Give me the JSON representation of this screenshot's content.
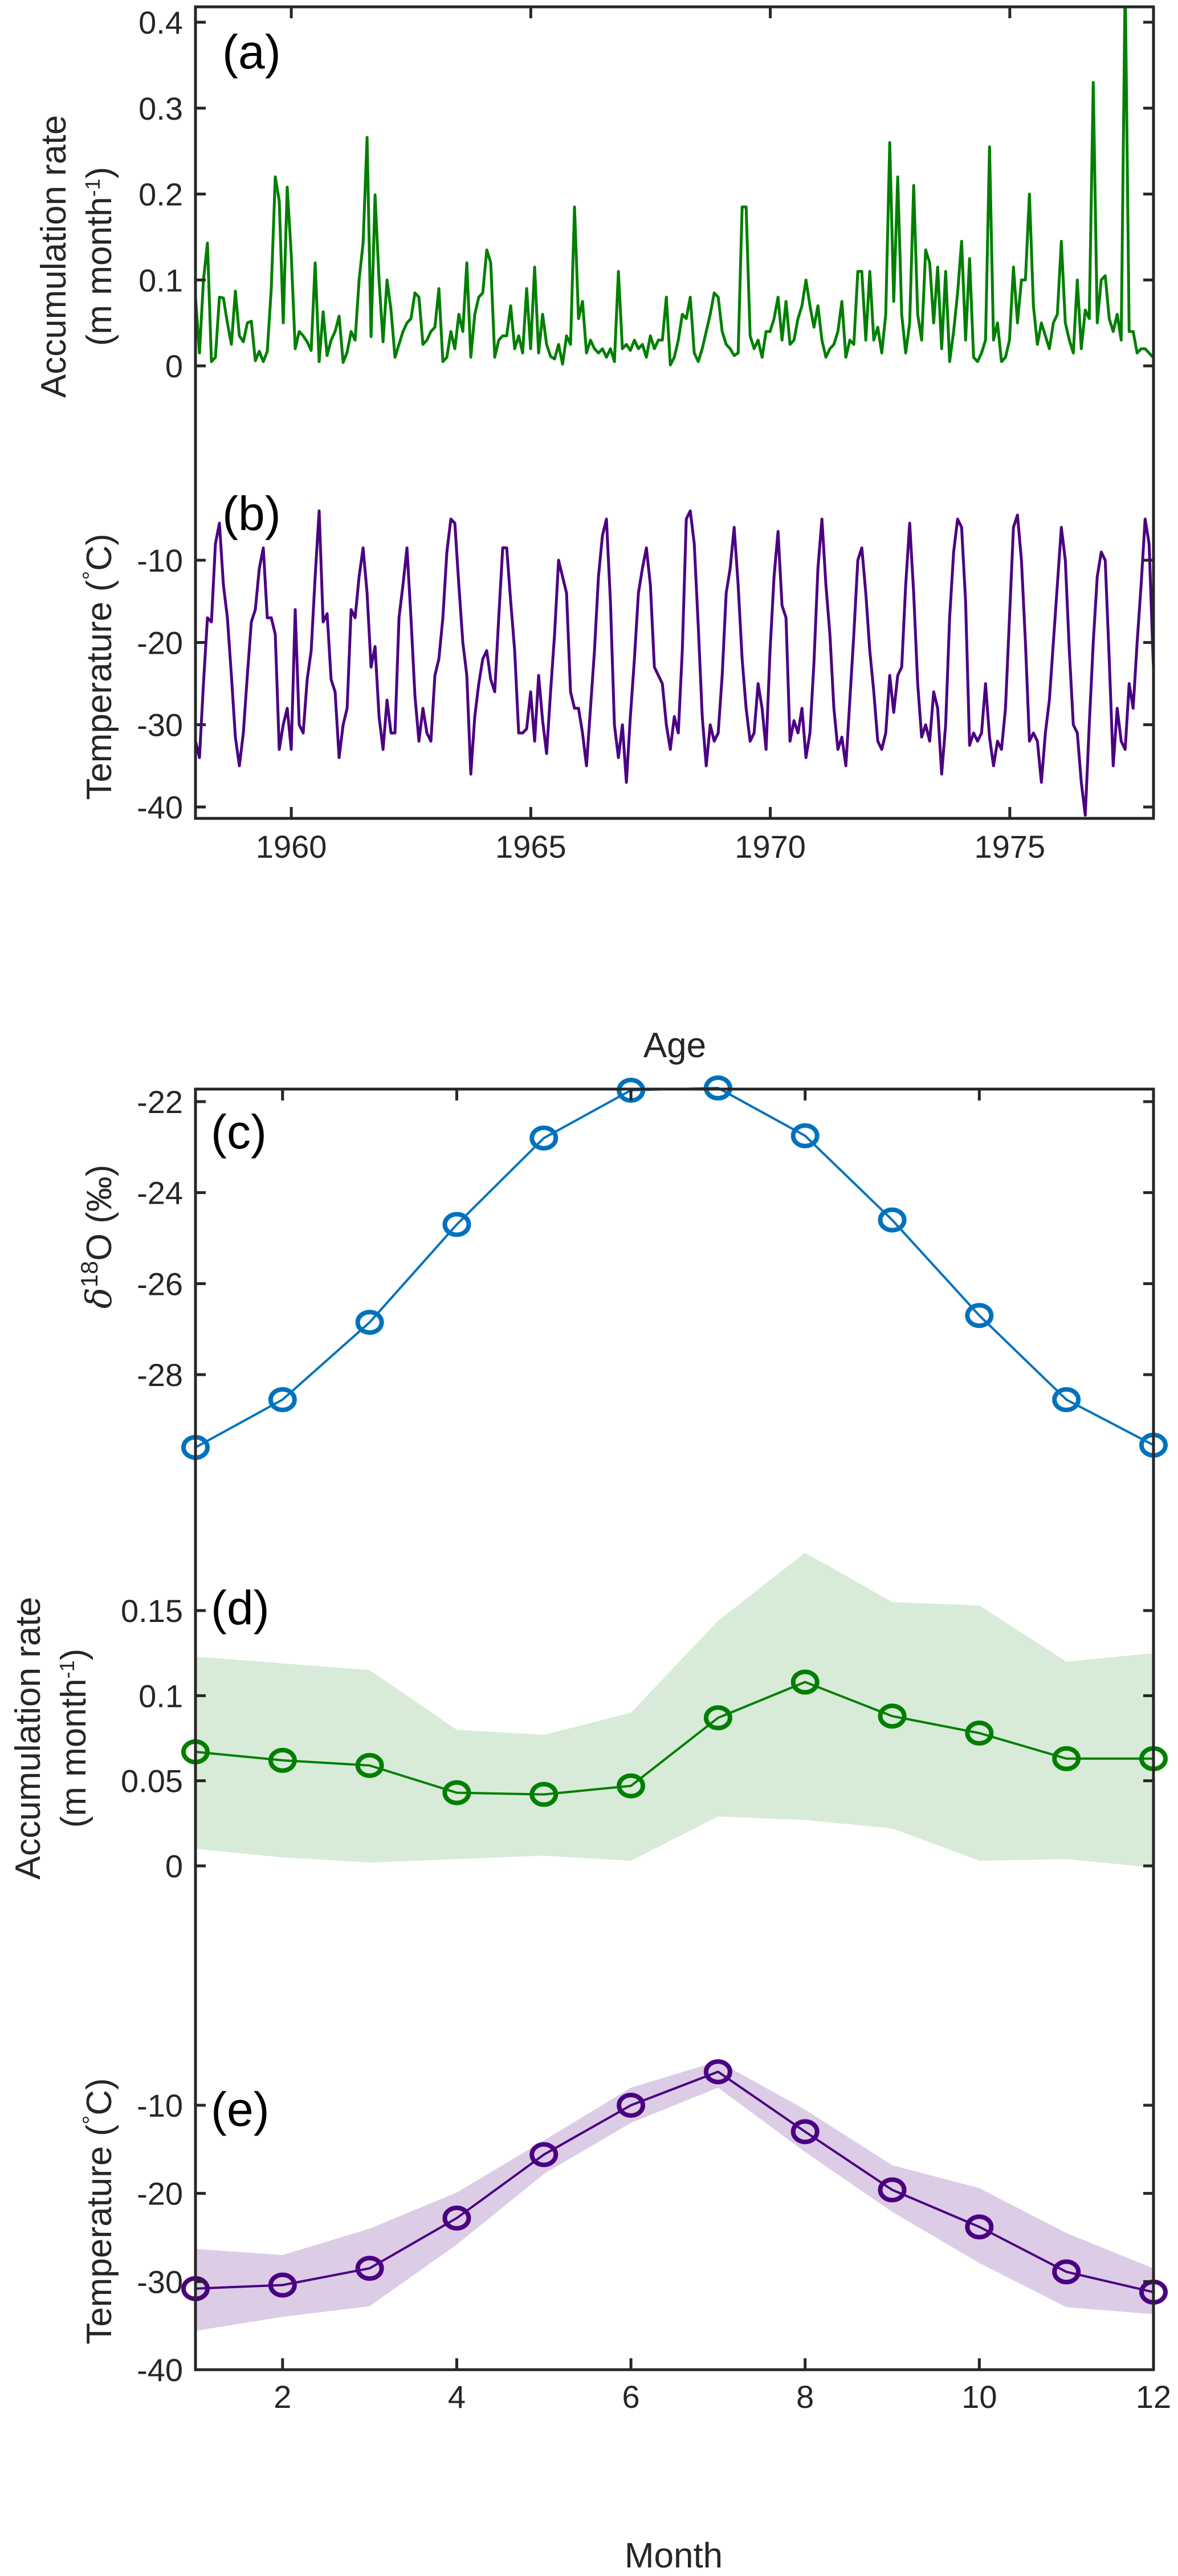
{
  "chart_data": [
    {
      "id": "a",
      "type": "line",
      "panel_label": "(a)",
      "xlabel": "",
      "ylabel": "Accumulation rate",
      "ylabel_line2": "(m month",
      "ylabel_sup": "-1",
      "ylabel_close": ")",
      "xlim": [
        1958,
        1978
      ],
      "ylim": [
        0,
        0.42
      ],
      "yticks": [
        0,
        0.1,
        0.2,
        0.3,
        0.4
      ],
      "ytick_labels": [
        "0",
        "0.1",
        "0.2",
        "0.3",
        "0.4"
      ],
      "xticks": [
        1960,
        1965,
        1970,
        1975
      ],
      "xtick_labels": [],
      "series": [
        {
          "name": "Accumulation rate (monthly)",
          "color": "#007F00",
          "x_start": 1958.0,
          "x_step": 0.0833,
          "values": [
            0.08,
            0.015,
            0.1,
            0.143,
            0.005,
            0.01,
            0.08,
            0.079,
            0.05,
            0.025,
            0.087,
            0.035,
            0.028,
            0.05,
            0.052,
            0.006,
            0.017,
            0.005,
            0.017,
            0.09,
            0.22,
            0.192,
            0.05,
            0.208,
            0.13,
            0.02,
            0.04,
            0.035,
            0.028,
            0.018,
            0.12,
            0.005,
            0.063,
            0.012,
            0.03,
            0.04,
            0.058,
            0.004,
            0.016,
            0.04,
            0.03,
            0.1,
            0.143,
            0.266,
            0.034,
            0.199,
            0.1,
            0.028,
            0.1,
            0.065,
            0.01,
            0.025,
            0.04,
            0.05,
            0.055,
            0.085,
            0.08,
            0.025,
            0.03,
            0.04,
            0.045,
            0.09,
            0.005,
            0.01,
            0.04,
            0.02,
            0.06,
            0.04,
            0.12,
            0.01,
            0.06,
            0.08,
            0.085,
            0.135,
            0.12,
            0.01,
            0.03,
            0.035,
            0.035,
            0.07,
            0.02,
            0.035,
            0.015,
            0.09,
            0.02,
            0.115,
            0.015,
            0.06,
            0.025,
            0.011,
            0.008,
            0.025,
            0.002,
            0.035,
            0.025,
            0.185,
            0.055,
            0.075,
            0.015,
            0.03,
            0.02,
            0.015,
            0.02,
            0.01,
            0.02,
            0.005,
            0.11,
            0.02,
            0.025,
            0.018,
            0.03,
            0.02,
            0.025,
            0.01,
            0.035,
            0.02,
            0.03,
            0.03,
            0.08,
            0.001,
            0.01,
            0.03,
            0.06,
            0.055,
            0.08,
            0.015,
            0.005,
            0.02,
            0.04,
            0.06,
            0.085,
            0.08,
            0.04,
            0.025,
            0.02,
            0.012,
            0.015,
            0.185,
            0.185,
            0.035,
            0.02,
            0.03,
            0.01,
            0.04,
            0.04,
            0.055,
            0.08,
            0.03,
            0.075,
            0.025,
            0.03,
            0.055,
            0.07,
            0.1,
            0.07,
            0.045,
            0.07,
            0.03,
            0.01,
            0.02,
            0.025,
            0.04,
            0.075,
            0.01,
            0.03,
            0.025,
            0.11,
            0.11,
            0.03,
            0.11,
            0.03,
            0.045,
            0.015,
            0.06,
            0.26,
            0.075,
            0.22,
            0.06,
            0.015,
            0.05,
            0.21,
            0.06,
            0.03,
            0.135,
            0.12,
            0.05,
            0.115,
            0.02,
            0.11,
            0.005,
            0.04,
            0.085,
            0.145,
            0.03,
            0.125,
            0.01,
            0.005,
            0.015,
            0.03,
            0.255,
            0.03,
            0.05,
            0.005,
            0.01,
            0.03,
            0.115,
            0.05,
            0.1,
            0.1,
            0.2,
            0.07,
            0.025,
            0.05,
            0.035,
            0.02,
            0.05,
            0.06,
            0.145,
            0.05,
            0.03,
            0.015,
            0.1,
            0.02,
            0.065,
            0.055,
            0.33,
            0.05,
            0.1,
            0.105,
            0.055,
            0.04,
            0.06,
            0.03,
            0.45,
            0.04,
            0.04,
            0.015,
            0.02,
            0.02,
            0.015,
            0.01,
            0.03,
            0.145,
            0.04,
            0.095,
            0.09,
            0.035,
            0.015,
            0.05
          ]
        }
      ]
    },
    {
      "id": "b",
      "type": "line",
      "panel_label": "(b)",
      "xlabel": "Age",
      "ylabel": "Temperature (",
      "ylabel_deg": "°",
      "ylabel_unit": "C)",
      "xlim": [
        1958,
        1978
      ],
      "ylim": [
        -41,
        -3
      ],
      "yticks": [
        -40,
        -30,
        -20,
        -10
      ],
      "ytick_labels": [
        "-40",
        "-30",
        "-20",
        "-10"
      ],
      "xticks": [
        1960,
        1965,
        1970,
        1975
      ],
      "xtick_labels": [
        "1960",
        "1965",
        "1970",
        "1975"
      ],
      "series": [
        {
          "name": "Temperature (monthly)",
          "color": "#4B0082",
          "x_start": 1958.0,
          "x_step": 0.0833,
          "values": [
            -32,
            -34,
            -25,
            -17,
            -17.5,
            -8,
            -5.5,
            -13,
            -17,
            -24,
            -31.5,
            -35,
            -31,
            -24,
            -17.5,
            -16,
            -11,
            -8.5,
            -17,
            -17,
            -19,
            -33,
            -30,
            -28,
            -33,
            -16,
            -30,
            -31,
            -24.5,
            -21,
            -12,
            -4,
            -17.5,
            -16.5,
            -24.5,
            -26,
            -34,
            -30,
            -28,
            -16,
            -17,
            -12,
            -8.5,
            -14,
            -23,
            -20.5,
            -29,
            -33,
            -27,
            -31,
            -31,
            -17,
            -13,
            -8.5,
            -17,
            -26.5,
            -32,
            -28,
            -31,
            -32,
            -24,
            -22,
            -17,
            -9,
            -5,
            -5.5,
            -13,
            -20,
            -24,
            -36,
            -29,
            -25,
            -22,
            -21,
            -24.5,
            -26,
            -17,
            -8.5,
            -8.5,
            -15,
            -21,
            -31,
            -31,
            -30.5,
            -26,
            -32,
            -24,
            -29.5,
            -33.5,
            -26,
            -19,
            -10,
            -12,
            -14,
            -26,
            -28,
            -28,
            -31,
            -35,
            -28,
            -21,
            -12,
            -7,
            -5,
            -15,
            -30,
            -34,
            -30,
            -37,
            -29,
            -22,
            -14,
            -11,
            -8.5,
            -13,
            -23,
            -24,
            -25,
            -30,
            -33,
            -29,
            -31,
            -21,
            -5,
            -4,
            -8,
            -18,
            -29,
            -35,
            -30,
            -32,
            -31,
            -24,
            -14,
            -11,
            -6,
            -13,
            -22,
            -28,
            -32,
            -31,
            -25,
            -28,
            -33,
            -21,
            -12,
            -6.5,
            -15.5,
            -17,
            -32,
            -29.5,
            -31,
            -28,
            -34,
            -31,
            -22.5,
            -11,
            -5,
            -13,
            -19,
            -28,
            -33,
            -31.5,
            -35,
            -27,
            -19,
            -10,
            -8.5,
            -14,
            -21,
            -26,
            -32,
            -33,
            -31,
            -24,
            -28.5,
            -24,
            -23,
            -13,
            -5.5,
            -14,
            -25,
            -31.5,
            -30,
            -32,
            -26,
            -28,
            -36,
            -30,
            -17,
            -9,
            -5,
            -6,
            -15,
            -32.5,
            -31,
            -32,
            -31,
            -25,
            -31.5,
            -35,
            -32,
            -33,
            -28,
            -17,
            -6,
            -4.5,
            -10,
            -20,
            -32,
            -31,
            -32,
            -37,
            -31,
            -27,
            -20,
            -13,
            -6,
            -10,
            -21,
            -30,
            -31,
            -37,
            -41,
            -30,
            -20,
            -12,
            -9,
            -10,
            -22,
            -35,
            -28,
            -32,
            -33,
            -25,
            -28,
            -20,
            -13,
            -5,
            -8,
            -22,
            -33,
            -42,
            -30,
            -26,
            -28,
            -20,
            -14,
            -5,
            -8,
            -22,
            -21,
            -22,
            -34,
            -36,
            -31,
            -24,
            -12,
            -5,
            -12,
            -19,
            -21,
            -31,
            -30,
            -33,
            -34,
            -31,
            -18,
            -12,
            -6,
            -14,
            -20,
            -22,
            -32,
            -29
          ]
        }
      ]
    },
    {
      "id": "c",
      "type": "line",
      "panel_label": "(c)",
      "ylabel_prefix": "δ",
      "ylabel_sup": "18",
      "ylabel_main": "O (‰)",
      "xlim": [
        1,
        12
      ],
      "ylim": [
        -29.8,
        -21.7
      ],
      "yticks": [
        -28,
        -26,
        -24,
        -22
      ],
      "ytick_labels": [
        "-28",
        "-26",
        "-24",
        "-22"
      ],
      "xticks": [
        2,
        4,
        6,
        8,
        10,
        12
      ],
      "x": [
        1,
        2,
        3,
        4,
        5,
        6,
        7,
        8,
        9,
        10,
        11,
        12
      ],
      "series": [
        {
          "name": "δ18O monthly mean",
          "color": "#0072BD",
          "marker": "circle-open",
          "values": [
            -29.6,
            -28.55,
            -26.85,
            -24.7,
            -22.8,
            -21.75,
            -21.7,
            -22.75,
            -24.6,
            -26.7,
            -28.55,
            -29.55
          ]
        }
      ]
    },
    {
      "id": "d",
      "type": "area",
      "panel_label": "(d)",
      "ylabel": "Accumulation rate",
      "ylabel_line2": "(m month",
      "ylabel_sup": "-1",
      "ylabel_close": ")",
      "xlim": [
        1,
        12
      ],
      "ylim": [
        -0.002,
        0.185
      ],
      "yticks": [
        0,
        0.05,
        0.1,
        0.15
      ],
      "ytick_labels": [
        "0",
        "0.05",
        "0.1",
        "0.15"
      ],
      "xticks": [
        2,
        4,
        6,
        8,
        10,
        12
      ],
      "x": [
        1,
        2,
        3,
        4,
        5,
        6,
        7,
        8,
        9,
        10,
        11,
        12
      ],
      "series": [
        {
          "name": "Accumulation monthly mean",
          "color": "#007F00",
          "marker": "circle-open",
          "values": [
            0.067,
            0.062,
            0.059,
            0.043,
            0.042,
            0.047,
            0.087,
            0.108,
            0.088,
            0.078,
            0.063,
            0.063
          ]
        }
      ],
      "band": {
        "name": "Accumulation range",
        "color": "#D8EBD8",
        "upper": [
          0.123,
          0.119,
          0.115,
          0.08,
          0.077,
          0.09,
          0.144,
          0.184,
          0.155,
          0.153,
          0.12,
          0.125
        ],
        "lower": [
          0.01,
          0.005,
          0.002,
          0.004,
          0.006,
          0.003,
          0.029,
          0.027,
          0.022,
          0.003,
          0.004,
          -0.001
        ]
      }
    },
    {
      "id": "e",
      "type": "area",
      "panel_label": "(e)",
      "xlabel": "Month",
      "ylabel": "Temperature (",
      "ylabel_deg": "°",
      "ylabel_unit": "C)",
      "xlim": [
        1,
        12
      ],
      "ylim": [
        -40,
        -4.5
      ],
      "yticks": [
        -40,
        -30,
        -20,
        -10
      ],
      "ytick_labels": [
        "-40",
        "-30",
        "-20",
        "-10"
      ],
      "xticks": [
        2,
        4,
        6,
        8,
        10,
        12
      ],
      "xtick_labels": [
        "2",
        "4",
        "6",
        "8",
        "10",
        "12"
      ],
      "x": [
        1,
        2,
        3,
        4,
        5,
        6,
        7,
        8,
        9,
        10,
        11,
        12
      ],
      "series": [
        {
          "name": "Temperature monthly mean",
          "color": "#4B0082",
          "marker": "circle-open",
          "values": [
            -30.8,
            -30.4,
            -28.5,
            -22.8,
            -15.6,
            -10.0,
            -6.2,
            -13.0,
            -19.6,
            -23.8,
            -28.9,
            -31.2
          ]
        }
      ],
      "band": {
        "name": "Temperature range",
        "color": "#DCCCE6",
        "upper": [
          -26.3,
          -27.0,
          -24.0,
          -19.9,
          -14.0,
          -8.0,
          -5.0,
          -10.5,
          -16.8,
          -19.4,
          -24.5,
          -28.5
        ],
        "lower": [
          -35.6,
          -34.0,
          -32.8,
          -25.8,
          -17.8,
          -12.0,
          -8.0,
          -15.3,
          -22.1,
          -27.9,
          -32.9,
          -33.7
        ]
      }
    }
  ]
}
